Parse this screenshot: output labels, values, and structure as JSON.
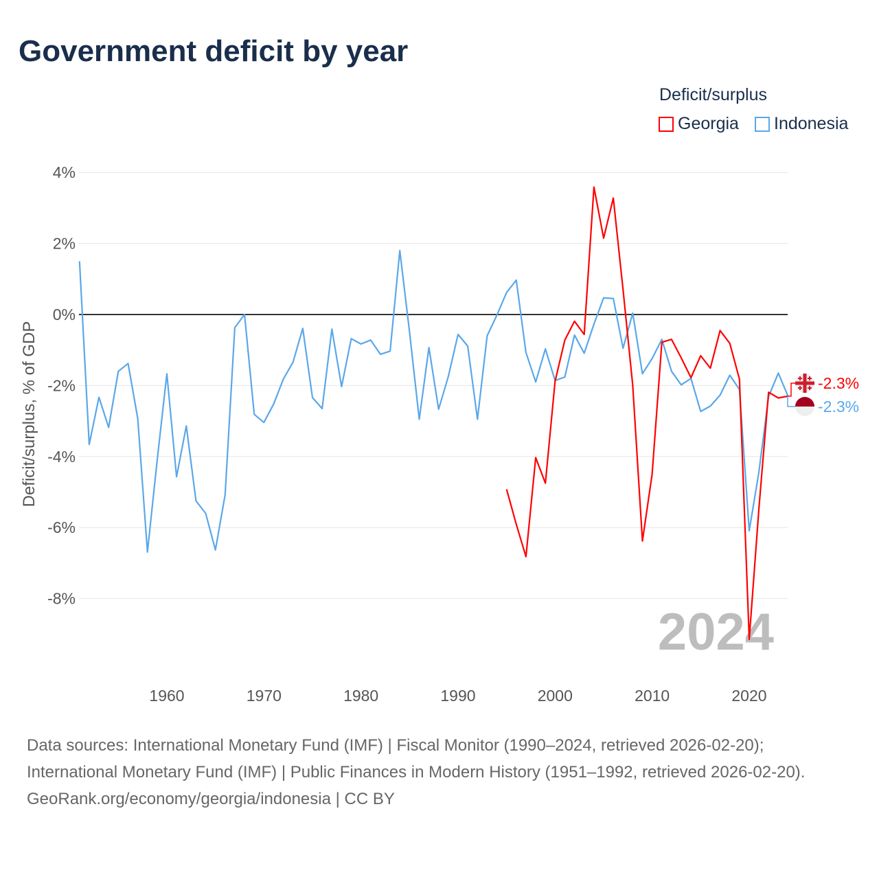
{
  "title": "Government deficit by year",
  "legend_title": "Deficit/surplus",
  "sources_line1": "Data sources: International Monetary Fund (IMF) | Fiscal Monitor (1990–2024, retrieved 2026-02-20); International Monetary Fund (IMF) | Public Finances in Modern History (1951–1992, retrieved 2026-02-20).",
  "sources_line2": "GeoRank.org/economy/georgia/indonesia | CC BY",
  "watermark_year": "2024",
  "chart_data": {
    "type": "line",
    "title": "Government deficit by year",
    "xlabel": "",
    "ylabel": "Deficit/surplus, % of GDP",
    "xlim": [
      1951,
      2024
    ],
    "ylim": [
      -10,
      4
    ],
    "x_ticks": [
      "1960",
      "1970",
      "1980",
      "1990",
      "2000",
      "2010",
      "2020"
    ],
    "y_ticks": [
      {
        "v": 4,
        "label": "4%"
      },
      {
        "v": 2,
        "label": "2%"
      },
      {
        "v": 0,
        "label": "0%"
      },
      {
        "v": -2,
        "label": "-2%"
      },
      {
        "v": -4,
        "label": "-4%"
      },
      {
        "v": -6,
        "label": "-6%"
      },
      {
        "v": -8,
        "label": "-8%"
      }
    ],
    "grid": true,
    "legend_position": "top-right",
    "series": [
      {
        "name": "Georgia",
        "color": "#ff0000",
        "end_label": "-2.3%",
        "x_start": 1995,
        "values": [
          -4.92,
          -5.91,
          -6.82,
          -4.03,
          -4.75,
          -1.88,
          -0.72,
          -0.19,
          -0.56,
          3.59,
          2.15,
          3.28,
          0.7,
          -2.0,
          -6.38,
          -4.5,
          -0.78,
          -0.7,
          -1.22,
          -1.78,
          -1.16,
          -1.51,
          -0.45,
          -0.81,
          -1.82,
          -9.15,
          -5.47,
          -2.19,
          -2.35,
          -2.3
        ]
      },
      {
        "name": "Indonesia",
        "color": "#5aa7ea",
        "end_label": "-2.3%",
        "x_start": 1951,
        "values": [
          1.5,
          -3.66,
          -2.33,
          -3.18,
          -1.6,
          -1.38,
          -2.93,
          -6.69,
          -4.1,
          -1.67,
          -4.57,
          -3.14,
          -5.25,
          -5.6,
          -6.63,
          -5.08,
          -0.37,
          0,
          -2.81,
          -3.04,
          -2.52,
          -1.82,
          -1.34,
          -0.39,
          -2.34,
          -2.65,
          -0.41,
          -2.03,
          -0.68,
          -0.83,
          -0.72,
          -1.12,
          -1.03,
          1.8,
          -0.48,
          -2.95,
          -0.93,
          -2.67,
          -1.74,
          -0.56,
          -0.89,
          -2.95,
          -0.6,
          -0.02,
          0.62,
          0.97,
          -1.07,
          -1.9,
          -0.97,
          -1.86,
          -1.76,
          -0.58,
          -1.09,
          -0.27,
          0.47,
          0.45,
          -0.95,
          0.04,
          -1.67,
          -1.24,
          -0.7,
          -1.6,
          -1.98,
          -1.8,
          -2.73,
          -2.58,
          -2.27,
          -1.71,
          -2.11,
          -6.09,
          -4.44,
          -2.31,
          -1.65,
          -2.3
        ]
      }
    ]
  }
}
